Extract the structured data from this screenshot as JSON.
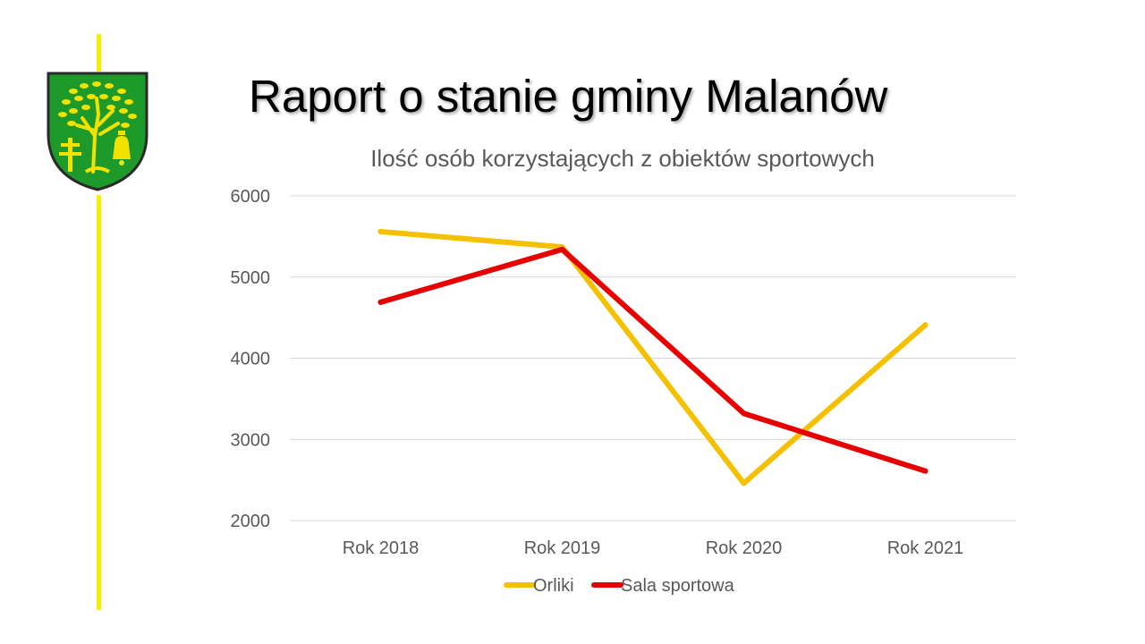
{
  "slide": {
    "title": "Raport o stanie gminy Malanów",
    "emblem": "coat-of-arms-tree-cross-bell",
    "accent_color": "#f2f200"
  },
  "chart_data": {
    "type": "line",
    "title": "Ilość osób korzystających z obiektów sportowych",
    "categories": [
      "Rok 2018",
      "Rok 2019",
      "Rok 2020",
      "Rok 2021"
    ],
    "series": [
      {
        "name": "Orliki",
        "color": "#f5c000",
        "values": [
          5560,
          5370,
          2460,
          4410
        ]
      },
      {
        "name": "Sala sportowa",
        "color": "#e60000",
        "values": [
          4690,
          5340,
          3320,
          2610
        ]
      }
    ],
    "yticks": [
      "2000",
      "3000",
      "4000",
      "5000",
      "6000"
    ],
    "ylim": [
      2000,
      6000
    ],
    "xlabel": "",
    "ylabel": "",
    "grid": true,
    "legend": "bottom"
  }
}
